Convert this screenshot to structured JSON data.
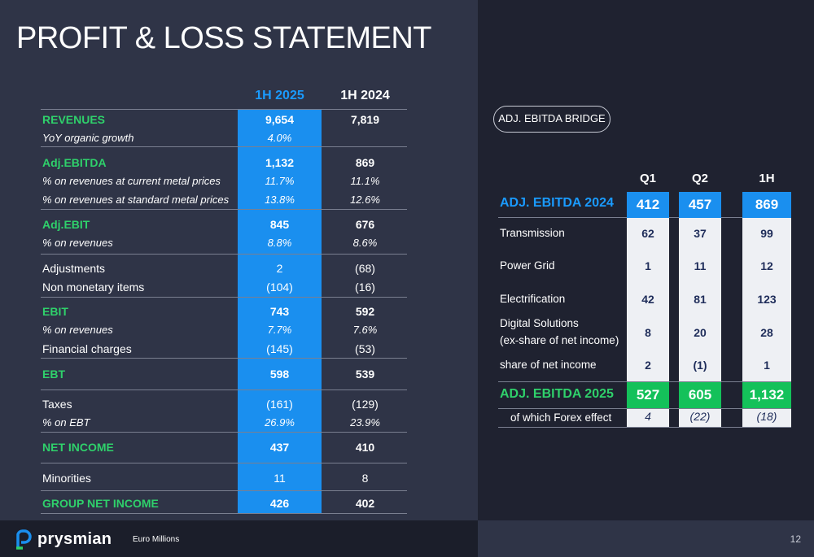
{
  "title": "PROFIT & LOSS STATEMENT",
  "pl": {
    "col1": "1H 2025",
    "col2": "1H 2024",
    "rows": [
      {
        "label": "REVENUES",
        "v1": "9,654",
        "v2": "7,819"
      },
      {
        "label": "YoY organic growth",
        "v1": "4.0%",
        "v2": ""
      },
      {
        "label": "Adj.EBITDA",
        "v1": "1,132",
        "v2": "869"
      },
      {
        "label": "% on revenues at current metal prices",
        "v1": "11.7%",
        "v2": "11.1%"
      },
      {
        "label": "% on revenues at standard metal prices",
        "v1": "13.8%",
        "v2": "12.6%"
      },
      {
        "label": "Adj.EBIT",
        "v1": "845",
        "v2": "676"
      },
      {
        "label": "% on revenues",
        "v1": "8.8%",
        "v2": "8.6%"
      },
      {
        "label": "Adjustments",
        "v1": "2",
        "v2": "(68)"
      },
      {
        "label": "Non monetary items",
        "v1": "(104)",
        "v2": "(16)"
      },
      {
        "label": "EBIT",
        "v1": "743",
        "v2": "592"
      },
      {
        "label": "% on revenues",
        "v1": "7.7%",
        "v2": "7.6%"
      },
      {
        "label": "Financial charges",
        "v1": "(145)",
        "v2": "(53)"
      },
      {
        "label": "EBT",
        "v1": "598",
        "v2": "539"
      },
      {
        "label": "Taxes",
        "v1": "(161)",
        "v2": "(129)"
      },
      {
        "label": "% on EBT",
        "v1": "26.9%",
        "v2": "23.9%"
      },
      {
        "label": "NET INCOME",
        "v1": "437",
        "v2": "410"
      },
      {
        "label": "Minorities",
        "v1": "11",
        "v2": "8"
      },
      {
        "label": "GROUP NET INCOME",
        "v1": "426",
        "v2": "402"
      }
    ]
  },
  "bridge": {
    "pill": "ADJ. EBITDA BRIDGE",
    "heads": [
      "Q1",
      "Q2",
      "1H"
    ],
    "start": {
      "label": "ADJ. EBITDA 2024",
      "q1": "412",
      "q2": "457",
      "h1": "869"
    },
    "items": [
      {
        "label": "Transmission",
        "q1": "62",
        "q2": "37",
        "h1": "99"
      },
      {
        "label": "Power Grid",
        "q1": "1",
        "q2": "11",
        "h1": "12"
      },
      {
        "label": "Electrification",
        "q1": "42",
        "q2": "81",
        "h1": "123"
      },
      {
        "label": "Digital Solutions",
        "label2": "(ex-share of net income)",
        "q1": "8",
        "q2": "20",
        "h1": "28"
      },
      {
        "label": "share of net income",
        "q1": "2",
        "q2": "(1)",
        "h1": "1"
      }
    ],
    "end": {
      "label": "ADJ. EBITDA 2025",
      "q1": "527",
      "q2": "605",
      "h1": "1,132"
    },
    "fx": {
      "label": "of which Forex effect",
      "q1": "4",
      "q2": "(22)",
      "h1": "(18)"
    }
  },
  "footer": {
    "brand": "prysmian",
    "units": "Euro Millions",
    "page": "12"
  },
  "colors": {
    "accent_blue": "#1a8fef",
    "accent_green": "#2fd16b",
    "bg": "#2f3447"
  }
}
